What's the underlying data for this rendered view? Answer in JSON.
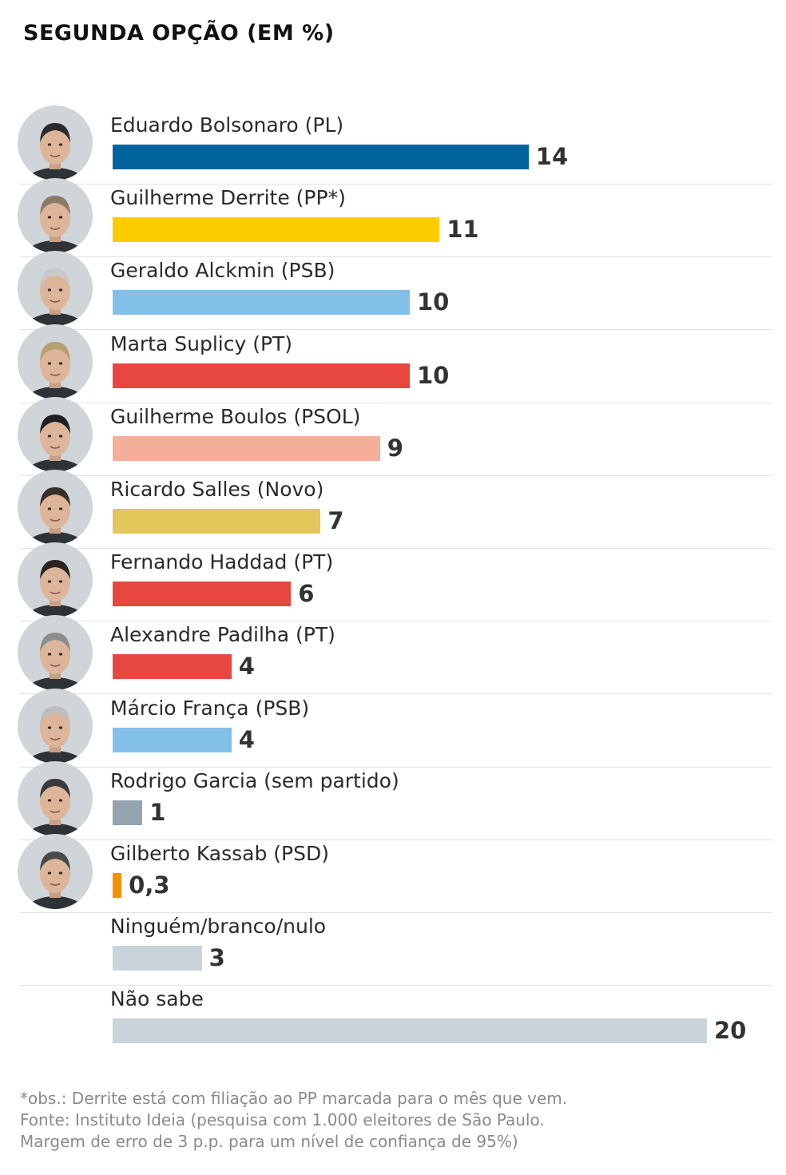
{
  "title": "SEGUNDA OPÇÃO (EM %)",
  "chart_data": {
    "type": "bar",
    "orientation": "horizontal",
    "title": "SEGUNDA OPÇÃO (EM %)",
    "categories": [
      "Eduardo Bolsonaro (PL)",
      "Guilherme Derrite (PP*)",
      "Geraldo Alckmin (PSB)",
      "Marta Suplicy (PT)",
      "Guilherme Boulos (PSOL)",
      "Ricardo Salles (Novo)",
      "Fernando Haddad (PT)",
      "Alexandre Padilha (PT)",
      "Márcio França (PSB)",
      "Rodrigo Garcia (sem partido)",
      "Gilberto Kassab (PSD)",
      "Ninguém/branco/nulo",
      "Não sabe"
    ],
    "values": [
      14,
      11,
      10,
      10,
      9,
      7,
      6,
      4,
      4,
      1,
      0.3,
      3,
      20
    ],
    "value_labels": [
      "14",
      "11",
      "10",
      "10",
      "9",
      "7",
      "6",
      "4",
      "4",
      "1",
      "0,3",
      "3",
      "20"
    ],
    "colors": [
      "#00649c",
      "#fccc00",
      "#82c0ea",
      "#e8473f",
      "#f4af9a",
      "#e3c75a",
      "#e8473f",
      "#e8473f",
      "#82c0ea",
      "#94a3ad",
      "#f39200",
      "#cad3d9",
      "#cad3d9"
    ],
    "has_photo": [
      true,
      true,
      true,
      true,
      true,
      true,
      true,
      true,
      true,
      true,
      true,
      false,
      false
    ],
    "xlim": [
      0,
      20
    ],
    "grid": false,
    "legend": "none"
  },
  "notes": [
    "*obs.: Derrite está com filiação ao PP marcada para o mês que vem.",
    "Fonte: Instituto Ideia (pesquisa com 1.000 eleitores de São Paulo.",
    "Margem de erro de 3 p.p. para um nível de confiança de 95%)"
  ]
}
